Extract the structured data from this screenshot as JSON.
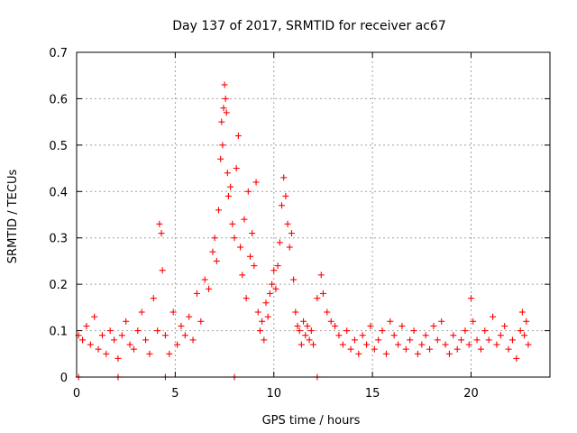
{
  "chart_data": {
    "type": "scatter",
    "title": "Day 137 of 2017, SRMTID for receiver ac67",
    "xlabel": "GPS time / hours",
    "ylabel": "SRMTID / TECUs",
    "xlim": [
      0,
      24
    ],
    "ylim": [
      0,
      0.7
    ],
    "xticks": [
      "0",
      "5",
      "10",
      "15",
      "20"
    ],
    "yticks": [
      "0",
      "0.1",
      "0.2",
      "0.3",
      "0.4",
      "0.5",
      "0.6",
      "0.7"
    ],
    "grid": true,
    "marker": "plus",
    "color": "#ff0000",
    "series": [
      {
        "name": "SRMTID",
        "points": [
          [
            0.1,
            0.09
          ],
          [
            0.3,
            0.08
          ],
          [
            0.5,
            0.11
          ],
          [
            0.7,
            0.07
          ],
          [
            0.9,
            0.13
          ],
          [
            1.1,
            0.06
          ],
          [
            1.3,
            0.09
          ],
          [
            1.5,
            0.05
          ],
          [
            1.7,
            0.1
          ],
          [
            1.9,
            0.08
          ],
          [
            2.1,
            0.04
          ],
          [
            2.3,
            0.09
          ],
          [
            2.5,
            0.12
          ],
          [
            2.7,
            0.07
          ],
          [
            2.9,
            0.06
          ],
          [
            3.1,
            0.1
          ],
          [
            3.3,
            0.14
          ],
          [
            3.5,
            0.08
          ],
          [
            3.7,
            0.05
          ],
          [
            3.9,
            0.17
          ],
          [
            4.1,
            0.1
          ],
          [
            4.2,
            0.33
          ],
          [
            4.3,
            0.31
          ],
          [
            4.35,
            0.23
          ],
          [
            4.5,
            0.09
          ],
          [
            4.7,
            0.05
          ],
          [
            4.9,
            0.14
          ],
          [
            5.1,
            0.07
          ],
          [
            5.3,
            0.11
          ],
          [
            5.5,
            0.09
          ],
          [
            5.7,
            0.13
          ],
          [
            5.9,
            0.08
          ],
          [
            6.1,
            0.18
          ],
          [
            6.3,
            0.12
          ],
          [
            6.5,
            0.21
          ],
          [
            6.7,
            0.19
          ],
          [
            6.9,
            0.27
          ],
          [
            7.0,
            0.3
          ],
          [
            7.1,
            0.25
          ],
          [
            7.2,
            0.36
          ],
          [
            7.3,
            0.47
          ],
          [
            7.35,
            0.55
          ],
          [
            7.4,
            0.5
          ],
          [
            7.45,
            0.58
          ],
          [
            7.5,
            0.63
          ],
          [
            7.55,
            0.6
          ],
          [
            7.6,
            0.57
          ],
          [
            7.65,
            0.44
          ],
          [
            7.7,
            0.39
          ],
          [
            7.8,
            0.41
          ],
          [
            7.9,
            0.33
          ],
          [
            8.0,
            0.3
          ],
          [
            8.1,
            0.45
          ],
          [
            8.2,
            0.52
          ],
          [
            8.3,
            0.28
          ],
          [
            8.4,
            0.22
          ],
          [
            8.5,
            0.34
          ],
          [
            8.6,
            0.17
          ],
          [
            8.7,
            0.4
          ],
          [
            8.8,
            0.26
          ],
          [
            8.9,
            0.31
          ],
          [
            9.0,
            0.24
          ],
          [
            9.1,
            0.42
          ],
          [
            9.2,
            0.14
          ],
          [
            9.3,
            0.1
          ],
          [
            9.4,
            0.12
          ],
          [
            9.5,
            0.08
          ],
          [
            9.6,
            0.16
          ],
          [
            9.7,
            0.13
          ],
          [
            9.8,
            0.18
          ],
          [
            9.9,
            0.2
          ],
          [
            10.0,
            0.23
          ],
          [
            10.1,
            0.19
          ],
          [
            10.2,
            0.24
          ],
          [
            10.3,
            0.29
          ],
          [
            10.4,
            0.37
          ],
          [
            10.5,
            0.43
          ],
          [
            10.6,
            0.39
          ],
          [
            10.7,
            0.33
          ],
          [
            10.8,
            0.28
          ],
          [
            10.9,
            0.31
          ],
          [
            11.0,
            0.21
          ],
          [
            11.1,
            0.14
          ],
          [
            11.2,
            0.11
          ],
          [
            11.3,
            0.1
          ],
          [
            11.4,
            0.07
          ],
          [
            11.5,
            0.12
          ],
          [
            11.6,
            0.09
          ],
          [
            11.7,
            0.11
          ],
          [
            11.8,
            0.08
          ],
          [
            11.9,
            0.1
          ],
          [
            12.0,
            0.07
          ],
          [
            12.2,
            0.17
          ],
          [
            12.4,
            0.22
          ],
          [
            12.5,
            0.18
          ],
          [
            12.7,
            0.14
          ],
          [
            12.9,
            0.12
          ],
          [
            13.1,
            0.11
          ],
          [
            13.3,
            0.09
          ],
          [
            13.5,
            0.07
          ],
          [
            13.7,
            0.1
          ],
          [
            13.9,
            0.06
          ],
          [
            14.1,
            0.08
          ],
          [
            14.3,
            0.05
          ],
          [
            14.5,
            0.09
          ],
          [
            14.7,
            0.07
          ],
          [
            14.9,
            0.11
          ],
          [
            15.1,
            0.06
          ],
          [
            15.3,
            0.08
          ],
          [
            15.5,
            0.1
          ],
          [
            15.7,
            0.05
          ],
          [
            15.9,
            0.12
          ],
          [
            16.1,
            0.09
          ],
          [
            16.3,
            0.07
          ],
          [
            16.5,
            0.11
          ],
          [
            16.7,
            0.06
          ],
          [
            16.9,
            0.08
          ],
          [
            17.1,
            0.1
          ],
          [
            17.3,
            0.05
          ],
          [
            17.5,
            0.07
          ],
          [
            17.7,
            0.09
          ],
          [
            17.9,
            0.06
          ],
          [
            18.1,
            0.11
          ],
          [
            18.3,
            0.08
          ],
          [
            18.5,
            0.12
          ],
          [
            18.7,
            0.07
          ],
          [
            18.9,
            0.05
          ],
          [
            19.1,
            0.09
          ],
          [
            19.3,
            0.06
          ],
          [
            19.5,
            0.08
          ],
          [
            19.7,
            0.1
          ],
          [
            19.9,
            0.07
          ],
          [
            20.0,
            0.17
          ],
          [
            20.1,
            0.12
          ],
          [
            20.3,
            0.08
          ],
          [
            20.5,
            0.06
          ],
          [
            20.7,
            0.1
          ],
          [
            20.9,
            0.08
          ],
          [
            21.1,
            0.13
          ],
          [
            21.3,
            0.07
          ],
          [
            21.5,
            0.09
          ],
          [
            21.7,
            0.11
          ],
          [
            21.9,
            0.06
          ],
          [
            22.1,
            0.08
          ],
          [
            22.3,
            0.04
          ],
          [
            22.5,
            0.1
          ],
          [
            22.6,
            0.14
          ],
          [
            22.7,
            0.09
          ],
          [
            22.8,
            0.12
          ],
          [
            22.9,
            0.07
          ],
          [
            0.1,
            0.0
          ],
          [
            2.1,
            0.0
          ],
          [
            4.5,
            0.0
          ],
          [
            8.0,
            0.0
          ],
          [
            12.2,
            0.0
          ]
        ]
      }
    ]
  }
}
